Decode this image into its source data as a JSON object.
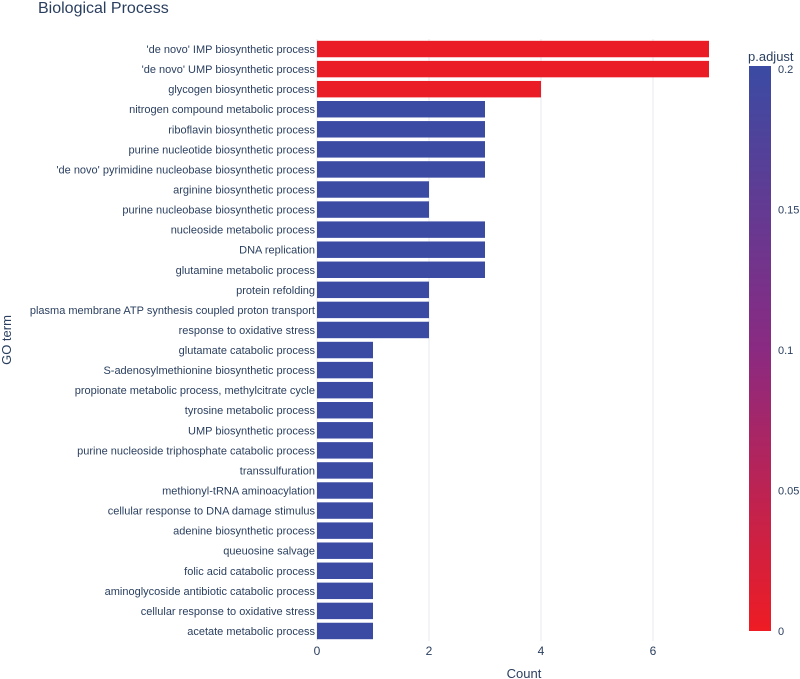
{
  "chart_data": {
    "type": "bar",
    "orientation": "horizontal",
    "title": "Biological Process",
    "xlabel": "Count",
    "ylabel": "GO term",
    "xlim": [
      0,
      7
    ],
    "xticks": [
      0,
      2,
      4,
      6
    ],
    "grid": true,
    "categories": [
      "'de novo' IMP biosynthetic process",
      "'de novo' UMP biosynthetic process",
      "glycogen biosynthetic process",
      "nitrogen compound metabolic process",
      "riboflavin biosynthetic process",
      "purine nucleotide biosynthetic process",
      "'de novo' pyrimidine nucleobase biosynthetic process",
      "arginine biosynthetic process",
      "purine nucleobase biosynthetic process",
      "nucleoside metabolic process",
      "DNA replication",
      "glutamine metabolic process",
      "protein refolding",
      "plasma membrane ATP synthesis coupled proton transport",
      "response to oxidative stress",
      "glutamate catabolic process",
      "S-adenosylmethionine biosynthetic process",
      "propionate metabolic process, methylcitrate cycle",
      "tyrosine metabolic process",
      "UMP biosynthetic process",
      "purine nucleoside triphosphate catabolic process",
      "transsulfuration",
      "methionyl-tRNA aminoacylation",
      "cellular response to DNA damage stimulus",
      "adenine biosynthetic process",
      "queuosine salvage",
      "folic acid catabolic process",
      "aminoglycoside antibiotic catabolic process",
      "cellular response to oxidative stress",
      "acetate metabolic process"
    ],
    "values": [
      7,
      7,
      4,
      3,
      3,
      3,
      3,
      2,
      2,
      3,
      3,
      3,
      2,
      2,
      2,
      1,
      1,
      1,
      1,
      1,
      1,
      1,
      1,
      1,
      1,
      1,
      1,
      1,
      1,
      1
    ],
    "p_adjust": [
      0.005,
      0.005,
      0.005,
      0.2,
      0.2,
      0.2,
      0.2,
      0.2,
      0.2,
      0.2,
      0.2,
      0.2,
      0.2,
      0.2,
      0.2,
      0.2,
      0.2,
      0.2,
      0.2,
      0.2,
      0.2,
      0.2,
      0.2,
      0.2,
      0.2,
      0.2,
      0.2,
      0.2,
      0.2,
      0.2
    ],
    "colorbar": {
      "title": "p.adjust",
      "range": [
        0,
        0.2
      ],
      "ticks": [
        0,
        0.05,
        0.1,
        0.15,
        0.2
      ],
      "tick_labels": [
        "0",
        "0.05",
        "0.1",
        "0.15",
        "0.2"
      ],
      "color_low": "#ee1c24",
      "color_high": "#3b4ba3"
    }
  }
}
